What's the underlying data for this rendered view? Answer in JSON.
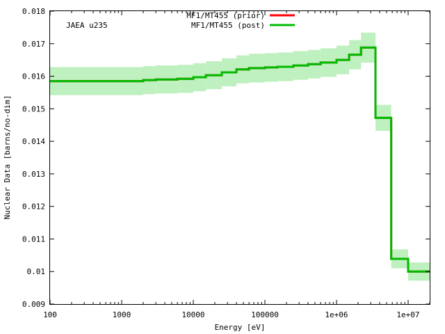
{
  "chart_data": {
    "type": "line",
    "subtype": "step",
    "title": "",
    "annotation": "JAEA u235",
    "xlabel": "Energy [eV]",
    "ylabel": "Nuclear Data [barns/no-dim]",
    "xscale": "log",
    "xlim": [
      100,
      20000000
    ],
    "ylim": [
      0.009,
      0.018
    ],
    "xticks": [
      {
        "value": 100,
        "label": "100"
      },
      {
        "value": 1000,
        "label": "1000"
      },
      {
        "value": 10000,
        "label": "10000"
      },
      {
        "value": 100000,
        "label": "100000"
      },
      {
        "value": 1000000,
        "label": "1e+06"
      },
      {
        "value": 10000000,
        "label": "1e+07"
      }
    ],
    "yticks": [
      {
        "value": 0.009,
        "label": "0.009"
      },
      {
        "value": 0.01,
        "label": "0.01"
      },
      {
        "value": 0.011,
        "label": "0.011"
      },
      {
        "value": 0.012,
        "label": "0.012"
      },
      {
        "value": 0.013,
        "label": "0.013"
      },
      {
        "value": 0.014,
        "label": "0.014"
      },
      {
        "value": 0.015,
        "label": "0.015"
      },
      {
        "value": 0.016,
        "label": "0.016"
      },
      {
        "value": 0.017,
        "label": "0.017"
      },
      {
        "value": 0.018,
        "label": "0.018"
      }
    ],
    "legend_position": "top-center",
    "grid": false,
    "band_color": "#bff0bf",
    "bin_edges": [
      100,
      2000,
      3000,
      6000,
      10000,
      15000,
      25000,
      40000,
      60000,
      100000,
      150000,
      250000,
      400000,
      600000,
      1000000,
      1500000,
      2200000,
      3500000,
      5800000,
      10000000,
      20000000
    ],
    "series": [
      {
        "name": "MF1/MT455 (prior)",
        "color": "#ff0000",
        "values": [
          0.01585,
          0.01588,
          0.0159,
          0.01592,
          0.01597,
          0.01603,
          0.01612,
          0.01621,
          0.01625,
          0.01627,
          0.01629,
          0.01633,
          0.01637,
          0.01642,
          0.0165,
          0.01666,
          0.01688,
          0.01472,
          0.01039,
          0.01
        ],
        "uncertainty": []
      },
      {
        "name": "MF1/MT455 (post)",
        "color": "#00bb00",
        "values": [
          0.01585,
          0.01588,
          0.0159,
          0.01592,
          0.01597,
          0.01603,
          0.01612,
          0.01621,
          0.01625,
          0.01627,
          0.01629,
          0.01633,
          0.01637,
          0.01642,
          0.0165,
          0.01666,
          0.01688,
          0.01472,
          0.01039,
          0.01
        ],
        "uncertainty": [
          0.00043,
          0.00043,
          0.00043,
          0.00043,
          0.00043,
          0.00043,
          0.00043,
          0.00043,
          0.00044,
          0.00044,
          0.00044,
          0.00044,
          0.00044,
          0.00044,
          0.00044,
          0.00045,
          0.00046,
          0.0004,
          0.00029,
          0.00028
        ]
      }
    ]
  }
}
